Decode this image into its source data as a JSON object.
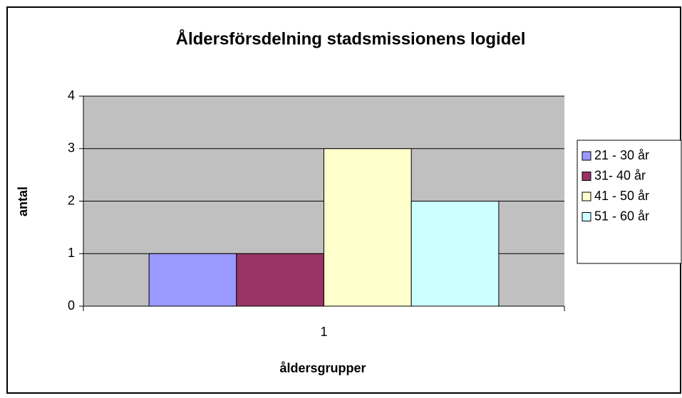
{
  "chart_data": {
    "type": "bar",
    "title": "Åldersförsdelning stadsmissionens logidel",
    "xlabel": "åldersgrupper",
    "ylabel": "antal",
    "categories": [
      "1"
    ],
    "series": [
      {
        "name": "21 - 30 år",
        "color": "#9999ff",
        "values": [
          1
        ]
      },
      {
        "name": "31- 40 år",
        "color": "#993366",
        "values": [
          1
        ]
      },
      {
        "name": "41 - 50 år",
        "color": "#ffffcc",
        "values": [
          3
        ]
      },
      {
        "name": "51 - 60 år",
        "color": "#ccffff",
        "values": [
          2
        ]
      }
    ],
    "ylim": [
      0,
      4
    ],
    "yticks": [
      0,
      1,
      2,
      3,
      4
    ],
    "grid": true,
    "legend": "right"
  }
}
